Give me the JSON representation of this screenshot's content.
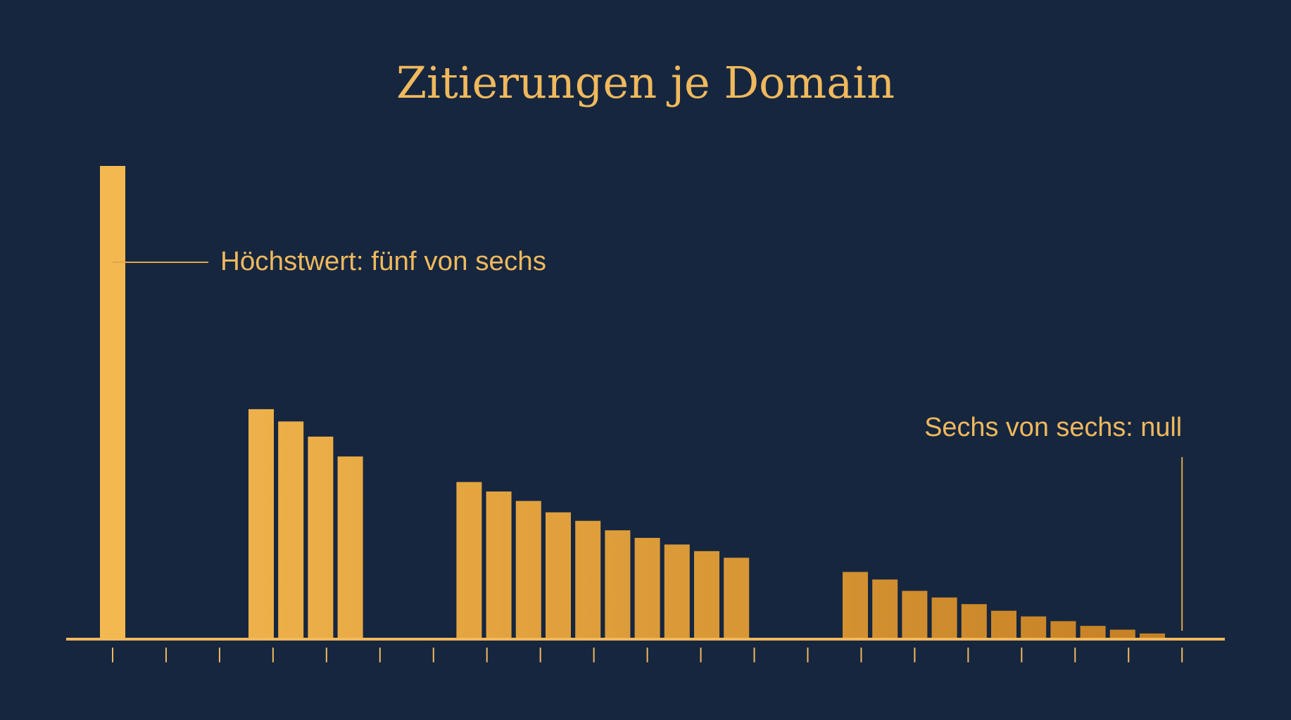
{
  "chart_data": {
    "type": "bar",
    "title": "Zitierungen je Domain",
    "categories": [
      null,
      null,
      null,
      null,
      null,
      null,
      null,
      null,
      null,
      null,
      null,
      null,
      null,
      null,
      null,
      null,
      null,
      null,
      null,
      null,
      null,
      null,
      null,
      null,
      null,
      null,
      null,
      null,
      null,
      null,
      null,
      null,
      null,
      null,
      null,
      null,
      null
    ],
    "values": [
      5,
      null,
      null,
      null,
      null,
      2.43,
      2.3,
      2.14,
      1.93,
      null,
      null,
      null,
      1.66,
      1.56,
      1.46,
      1.34,
      1.25,
      1.15,
      1.07,
      1.0,
      0.93,
      0.86,
      null,
      null,
      null,
      0.71,
      0.63,
      0.51,
      0.44,
      0.37,
      0.3,
      0.24,
      0.19,
      0.14,
      0.1,
      0.06,
      0
    ],
    "ylim": [
      0,
      5
    ],
    "colors": [
      "#f4b850",
      "#c47f22"
    ],
    "annotations": [
      {
        "text": "Höchstwert: fünf von sechs",
        "index": 0
      },
      {
        "text": "Sechs von sechs: null",
        "index": 36
      }
    ]
  }
}
